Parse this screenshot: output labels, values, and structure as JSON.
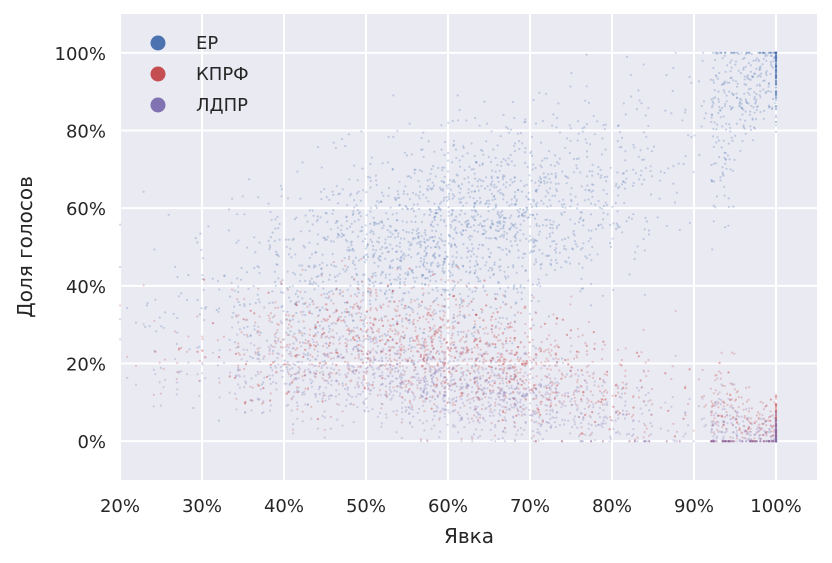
{
  "chart_data": {
    "type": "scatter",
    "xlabel": "Явка",
    "ylabel": "Доля голосов",
    "xlim": [
      20,
      105
    ],
    "ylim": [
      -10,
      110
    ],
    "x_ticks": [
      20,
      30,
      40,
      50,
      60,
      70,
      80,
      90,
      100
    ],
    "y_ticks": [
      0,
      20,
      40,
      60,
      80,
      100
    ],
    "x_tick_labels": [
      "20%",
      "30%",
      "40%",
      "50%",
      "60%",
      "70%",
      "80%",
      "90%",
      "100%"
    ],
    "y_tick_labels": [
      "0%",
      "20%",
      "40%",
      "60%",
      "80%",
      "100%"
    ],
    "grid": true,
    "legend_position": "top-left",
    "background": "#EAEAF2",
    "series": [
      {
        "name": "ЕР",
        "color": "#4C72B0",
        "trend": [
          [
            40,
            38
          ],
          [
            50,
            46
          ],
          [
            60,
            52
          ],
          [
            70,
            58
          ],
          [
            80,
            64
          ],
          [
            90,
            78
          ],
          [
            100,
            98
          ]
        ]
      },
      {
        "name": "КПРФ",
        "color": "#C44E52",
        "trend": [
          [
            40,
            24
          ],
          [
            50,
            26
          ],
          [
            60,
            23
          ],
          [
            70,
            19
          ],
          [
            80,
            14
          ],
          [
            90,
            8
          ],
          [
            100,
            2
          ]
        ]
      },
      {
        "name": "ЛДПР",
        "color": "#8172B2",
        "trend": [
          [
            40,
            18
          ],
          [
            50,
            17
          ],
          [
            60,
            14
          ],
          [
            70,
            11
          ],
          [
            80,
            7
          ],
          [
            90,
            3
          ],
          [
            100,
            0
          ]
        ]
      }
    ]
  }
}
